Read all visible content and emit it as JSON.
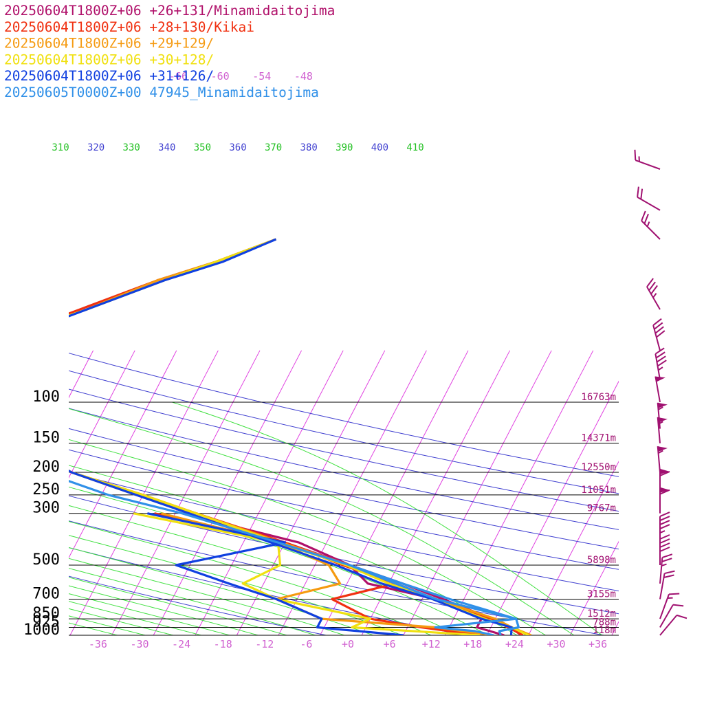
{
  "chart_data": {
    "type": "line",
    "title": "",
    "legend": [
      {
        "text": "20250604T1800Z+06 +26+131/Minamidaitojima",
        "color": "#b0106a"
      },
      {
        "text": "20250604T1800Z+06 +28+130/Kikai",
        "color": "#f03010"
      },
      {
        "text": "20250604T1800Z+06 +29+129/",
        "color": "#f59a10"
      },
      {
        "text": "20250604T1800Z+06 +30+128/",
        "color": "#f0e010"
      },
      {
        "text": "20250604T1800Z+06 +31+126/",
        "color": "#1040e0"
      },
      {
        "text": "20250605T0000Z+00 47945_Minamidaitojima",
        "color": "#3090e8"
      }
    ],
    "pressure_levels": [
      {
        "label": "100",
        "height": "16763m",
        "p": 100
      },
      {
        "label": "150",
        "height": "14371m",
        "p": 150
      },
      {
        "label": "200",
        "height": "12550m",
        "p": 200
      },
      {
        "label": "250",
        "height": "11051m",
        "p": 250
      },
      {
        "label": "300",
        "height": "9767m",
        "p": 300
      },
      {
        "label": "500",
        "height": "5898m",
        "p": 500
      },
      {
        "label": "700",
        "height": "3155m",
        "p": 700
      },
      {
        "label": "850",
        "height": "1512m",
        "p": 850
      },
      {
        "label": "925",
        "height": "788m",
        "p": 925
      },
      {
        "label": "1000",
        "height": "118m",
        "p": 1000
      }
    ],
    "temperature_ticks": [
      "-36",
      "-30",
      "-24",
      "-18",
      "-12",
      "-6",
      "+0",
      "+6",
      "+12",
      "+18",
      "+24",
      "+30",
      "+36"
    ],
    "upper_temperature_labels": [
      "-66",
      "-60",
      "-54",
      "-48"
    ],
    "theta_labels": [
      {
        "text": "310",
        "color": "#22c022"
      },
      {
        "text": "320",
        "color": "#4040d0"
      },
      {
        "text": "330",
        "color": "#22c022"
      },
      {
        "text": "340",
        "color": "#4040d0"
      },
      {
        "text": "350",
        "color": "#22c022"
      },
      {
        "text": "360",
        "color": "#4040d0"
      },
      {
        "text": "370",
        "color": "#22c022"
      },
      {
        "text": "380",
        "color": "#4040d0"
      },
      {
        "text": "390",
        "color": "#22c022"
      },
      {
        "text": "400",
        "color": "#4040d0"
      },
      {
        "text": "410",
        "color": "#22c022"
      }
    ],
    "colors": {
      "isotherm": "#e040e0",
      "dry_adiabat": "#4040d0",
      "moist_adiabat": "#40e040",
      "isobar": "#000000",
      "tick_label": "#d060d0",
      "height_label": "#a01070",
      "wind_barb": "#a01070"
    },
    "series": [
      {
        "name": "20250604T1800Z+06 +26+131/Minamidaitojima",
        "color": "#b0106a",
        "temp": [
          [
            1000,
            25
          ],
          [
            925,
            22.8
          ],
          [
            850,
            19.5
          ],
          [
            700,
            11
          ],
          [
            600,
            4
          ],
          [
            500,
            -5
          ],
          [
            400,
            -16
          ],
          [
            300,
            -31
          ],
          [
            250,
            -40.5
          ],
          [
            200,
            -52
          ],
          [
            150,
            -62
          ],
          [
            100,
            -79
          ],
          [
            80,
            -80
          ],
          [
            70,
            -79
          ],
          [
            60,
            -76
          ],
          [
            50,
            -70
          ],
          [
            40,
            -62
          ],
          [
            30,
            -54
          ],
          [
            25,
            -47
          ],
          [
            20,
            -40
          ]
        ],
        "dew": [
          [
            1000,
            22.5
          ],
          [
            925,
            18
          ],
          [
            850,
            18
          ],
          [
            700,
            10
          ],
          [
            600,
            -1
          ],
          [
            500,
            -5
          ],
          [
            400,
            -14
          ],
          [
            300,
            -33
          ]
        ]
      },
      {
        "name": "20250604T1800Z+06 +28+130/Kikai",
        "color": "#f03010",
        "temp": [
          [
            1000,
            25.2
          ],
          [
            925,
            22.5
          ],
          [
            850,
            19.5
          ],
          [
            700,
            10
          ],
          [
            600,
            3
          ],
          [
            500,
            -5.5
          ],
          [
            400,
            -16
          ],
          [
            300,
            -31
          ],
          [
            250,
            -40
          ],
          [
            200,
            -52
          ],
          [
            150,
            -62
          ],
          [
            100,
            -77
          ],
          [
            80,
            -80
          ],
          [
            70,
            -79
          ],
          [
            60,
            -76
          ],
          [
            50,
            -70
          ],
          [
            40,
            -63
          ],
          [
            30,
            -54
          ],
          [
            25,
            -47
          ],
          [
            20,
            -40
          ]
        ],
        "dew": [
          [
            1000,
            19
          ],
          [
            925,
            10
          ],
          [
            850,
            2
          ],
          [
            700,
            -5
          ],
          [
            600,
            3
          ],
          [
            500,
            -6
          ],
          [
            400,
            -16
          ],
          [
            300,
            -37
          ]
        ]
      },
      {
        "name": "20250604T1800Z+06 +29+129/",
        "color": "#f59a10",
        "temp": [
          [
            1000,
            26.4
          ],
          [
            925,
            23
          ],
          [
            850,
            20
          ],
          [
            700,
            10
          ],
          [
            600,
            3
          ],
          [
            500,
            -5
          ],
          [
            400,
            -16.5
          ],
          [
            300,
            -31
          ],
          [
            250,
            -41
          ],
          [
            200,
            -52
          ],
          [
            150,
            -62
          ],
          [
            100,
            -76
          ],
          [
            80,
            -79
          ],
          [
            70,
            -79
          ],
          [
            60,
            -76
          ],
          [
            50,
            -70
          ],
          [
            40,
            -62
          ],
          [
            30,
            -54
          ],
          [
            25,
            -47
          ],
          [
            20,
            -40
          ]
        ],
        "dew": [
          [
            1000,
            21
          ],
          [
            925,
            12
          ],
          [
            850,
            -5
          ],
          [
            700,
            -13
          ],
          [
            600,
            -5
          ],
          [
            500,
            -8
          ],
          [
            400,
            -17
          ],
          [
            300,
            -36
          ]
        ]
      },
      {
        "name": "20250604T1800Z+06 +30+128/",
        "color": "#f0e010",
        "temp": [
          [
            1000,
            26
          ],
          [
            925,
            23
          ],
          [
            850,
            18.5
          ],
          [
            700,
            9.5
          ],
          [
            600,
            2
          ],
          [
            500,
            -5.5
          ],
          [
            400,
            -17
          ],
          [
            300,
            -31
          ],
          [
            250,
            -40
          ],
          [
            200,
            -52
          ],
          [
            150,
            -62
          ],
          [
            100,
            -74
          ],
          [
            80,
            -78
          ],
          [
            70,
            -78
          ],
          [
            60,
            -75
          ],
          [
            50,
            -70
          ],
          [
            40,
            -62
          ],
          [
            30,
            -53
          ],
          [
            25,
            -47
          ],
          [
            20,
            -40
          ]
        ],
        "dew": [
          [
            1000,
            19
          ],
          [
            925,
            0
          ],
          [
            850,
            2
          ],
          [
            700,
            -13
          ],
          [
            600,
            -19
          ],
          [
            500,
            -15
          ],
          [
            400,
            -17
          ],
          [
            300,
            -40
          ]
        ]
      },
      {
        "name": "20250604T1800Z+06 +31+126/",
        "color": "#1040e0",
        "temp": [
          [
            1000,
            23.5
          ],
          [
            925,
            23
          ],
          [
            850,
            18
          ],
          [
            700,
            9.5
          ],
          [
            600,
            1
          ],
          [
            500,
            -7
          ],
          [
            400,
            -18
          ],
          [
            300,
            -32
          ],
          [
            250,
            -41
          ],
          [
            200,
            -52
          ],
          [
            150,
            -62
          ],
          [
            100,
            -71
          ],
          [
            80,
            -77
          ],
          [
            70,
            -77
          ],
          [
            60,
            -75
          ],
          [
            50,
            -69
          ],
          [
            40,
            -62
          ],
          [
            30,
            -53
          ],
          [
            25,
            -46
          ],
          [
            20,
            -40
          ]
        ],
        "dew": [
          [
            1000,
            8
          ],
          [
            925,
            -5
          ],
          [
            850,
            -5
          ],
          [
            700,
            -13
          ],
          [
            600,
            -21
          ],
          [
            500,
            -30
          ],
          [
            400,
            -16
          ],
          [
            300,
            -38
          ]
        ]
      },
      {
        "name": "20250605T0000Z+00 47945_Minamidaitojima",
        "color": "#3090e8",
        "temp": [
          [
            1000,
            22
          ],
          [
            960,
            21.5
          ],
          [
            925,
            24
          ],
          [
            850,
            23
          ],
          [
            700,
            12
          ],
          [
            600,
            4
          ],
          [
            500,
            -5
          ],
          [
            400,
            -17
          ],
          [
            300,
            -33
          ],
          [
            250,
            -45
          ],
          [
            200,
            -56
          ],
          [
            150,
            -68
          ],
          [
            125,
            -73
          ],
          [
            110,
            -76
          ],
          [
            100,
            -76
          ]
        ],
        "dew": [
          [
            1000,
            21
          ],
          [
            960,
            18
          ],
          [
            925,
            12
          ],
          [
            850,
            23
          ],
          [
            700,
            10
          ],
          [
            600,
            3
          ],
          [
            500,
            -5
          ]
        ]
      }
    ],
    "wind_barbs": [
      {
        "p": 10,
        "dir": 290,
        "kt": 15
      },
      {
        "p": 15,
        "dir": 300,
        "kt": 20
      },
      {
        "p": 20,
        "dir": 315,
        "kt": 25
      },
      {
        "p": 40,
        "dir": 330,
        "kt": 35
      },
      {
        "p": 60,
        "dir": 345,
        "kt": 40
      },
      {
        "p": 80,
        "dir": 350,
        "kt": 45
      },
      {
        "p": 100,
        "dir": 350,
        "kt": 50
      },
      {
        "p": 130,
        "dir": 355,
        "kt": 55
      },
      {
        "p": 150,
        "dir": 355,
        "kt": 55
      },
      {
        "p": 200,
        "dir": 355,
        "kt": 55
      },
      {
        "p": 250,
        "dir": 360,
        "kt": 60
      },
      {
        "p": 300,
        "dir": 360,
        "kt": 60
      },
      {
        "p": 400,
        "dir": 0,
        "kt": 45
      },
      {
        "p": 500,
        "dir": 0,
        "kt": 40
      },
      {
        "p": 600,
        "dir": 5,
        "kt": 25
      },
      {
        "p": 700,
        "dir": 10,
        "kt": 20
      },
      {
        "p": 850,
        "dir": 20,
        "kt": 15
      },
      {
        "p": 925,
        "dir": 30,
        "kt": 10
      },
      {
        "p": 1000,
        "dir": 40,
        "kt": 10
      }
    ]
  }
}
